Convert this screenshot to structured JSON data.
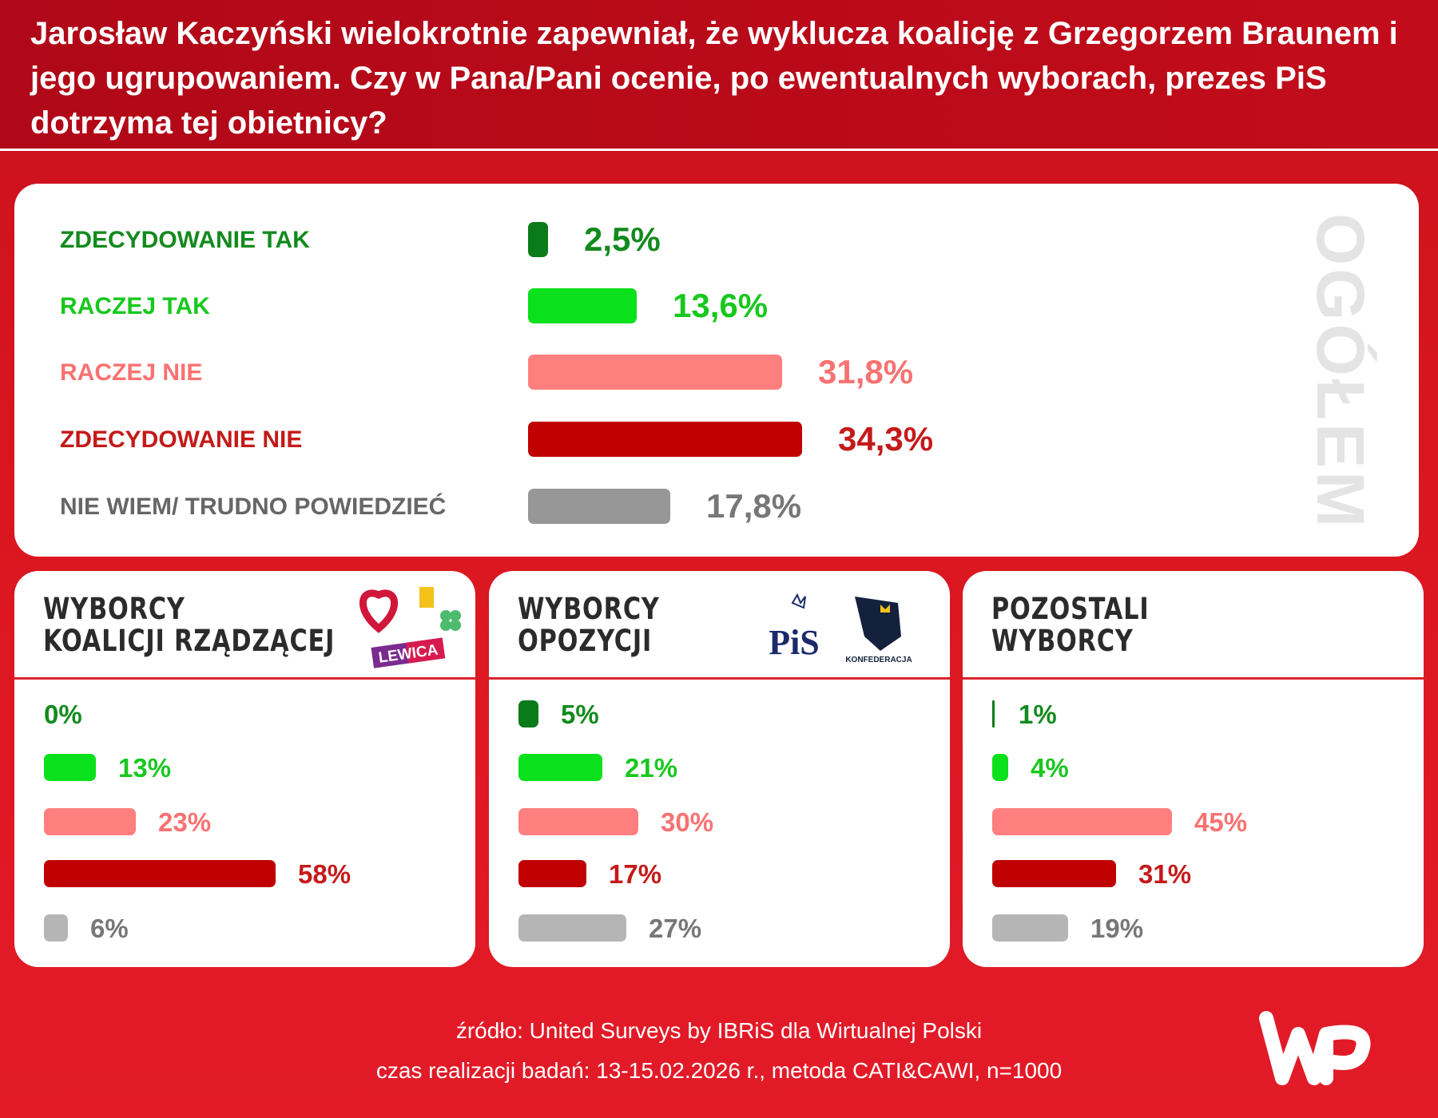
{
  "header": {
    "title": "Jarosław Kaczyński wielokrotnie zapewniał, że wyklucza koalicję z Grzegorzem Braunem i jego ugrupowaniem. Czy w Pana/Pani ocenie, po ewentualnych wyborach, prezes PiS dotrzyma tej obietnicy?"
  },
  "colors": {
    "zdecydowanie_tak": "#0b7a1a",
    "raczej_tak": "#0be01c",
    "raczej_nie": "#ff7f7f",
    "zdecydowanie_nie": "#c00000",
    "nie_wiem_main": "#979797",
    "nie_wiem_sub": "#b5b5b5"
  },
  "chart_data": [
    {
      "type": "bar",
      "orientation": "horizontal",
      "title": "OGÓŁEM",
      "categories": [
        "ZDECYDOWANIE TAK",
        "RACZEJ TAK",
        "RACZEJ NIE",
        "ZDECYDOWANIE NIE",
        "NIE WIEM/ TRUDNO POWIEDZIEĆ"
      ],
      "values": [
        2.5,
        13.6,
        31.8,
        34.3,
        17.8
      ],
      "labels": [
        "2,5%",
        "13,6%",
        "31,8%",
        "34,3%",
        "17,8%"
      ]
    },
    {
      "type": "bar",
      "orientation": "horizontal",
      "title": "WYBORCY KOALICJI RZĄDZĄCEJ",
      "categories": [
        "ZDECYDOWANIE TAK",
        "RACZEJ TAK",
        "RACZEJ NIE",
        "ZDECYDOWANIE NIE",
        "NIE WIEM/ TRUDNO POWIEDZIEĆ"
      ],
      "values": [
        0,
        13,
        23,
        58,
        6
      ],
      "labels": [
        "0%",
        "13%",
        "23%",
        "58%",
        "6%"
      ]
    },
    {
      "type": "bar",
      "orientation": "horizontal",
      "title": "WYBORCY OPOZYCJI",
      "categories": [
        "ZDECYDOWANIE TAK",
        "RACZEJ TAK",
        "RACZEJ NIE",
        "ZDECYDOWANIE NIE",
        "NIE WIEM/ TRUDNO POWIEDZIEĆ"
      ],
      "values": [
        5,
        21,
        30,
        17,
        27
      ],
      "labels": [
        "5%",
        "21%",
        "30%",
        "17%",
        "27%"
      ]
    },
    {
      "type": "bar",
      "orientation": "horizontal",
      "title": "POZOSTALI WYBORCY",
      "categories": [
        "ZDECYDOWANIE TAK",
        "RACZEJ TAK",
        "RACZEJ NIE",
        "ZDECYDOWANIE NIE",
        "NIE WIEM/ TRUDNO POWIEDZIEĆ"
      ],
      "values": [
        1,
        4,
        45,
        31,
        19
      ],
      "labels": [
        "1%",
        "4%",
        "45%",
        "31%",
        "19%"
      ]
    }
  ],
  "subtitles": [
    {
      "line1": "WYBORCY",
      "line2": "KOALICJI RZĄDZĄCEJ"
    },
    {
      "line1": "WYBORCY",
      "line2": "OPOZYCJI"
    },
    {
      "line1": "POZOSTALI",
      "line2": "WYBORCY"
    }
  ],
  "logos": {
    "lewica": "LEWICA",
    "pis": "PiS",
    "konfederacja": "KONFEDERACJA",
    "wp": "WP"
  },
  "footer": {
    "source": "źródło: United Surveys by IBRiS dla Wirtualnej Polski",
    "method": "czas realizacji badań: 13-15.02.2026 r., metoda CATI&CAWI, n=1000"
  }
}
